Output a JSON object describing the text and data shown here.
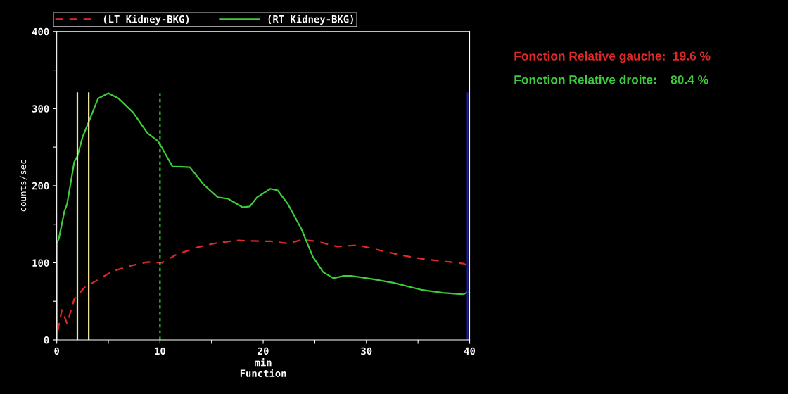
{
  "chart_data": {
    "type": "line",
    "xlabel": "min\nFunction",
    "ylabel": "counts/sec",
    "xlim": [
      0,
      40
    ],
    "xticks": [
      0,
      {
        "value": 5,
        "label": null
      },
      10,
      {
        "value": 15,
        "label": null
      },
      20,
      {
        "value": 25,
        "label": null
      },
      30,
      {
        "value": 35,
        "label": null
      },
      40
    ],
    "ylim": [
      0,
      400
    ],
    "yticks": [
      0,
      {
        "value": 50,
        "label": null
      },
      100,
      {
        "value": 150,
        "label": null
      },
      200,
      {
        "value": 250,
        "label": null
      },
      300,
      {
        "value": 350,
        "label": null
      },
      400
    ],
    "legend": "top left",
    "grid": false,
    "series": [
      {
        "name": "(LT Kidney-BKG)",
        "color": "#e02828",
        "line_style": "dashed",
        "x": [
          0.1,
          0.5,
          1,
          1.7,
          2.7,
          4,
          5.4,
          7.1,
          8.8,
          10.2,
          11.5,
          13.6,
          15.6,
          17.6,
          19.7,
          20.7,
          22.4,
          23.8,
          25.1,
          27.2,
          29.2,
          31.3,
          33.3,
          35.4,
          38.1,
          39.4,
          39.8
        ],
        "values": [
          12,
          39,
          21,
          53,
          68,
          78,
          89,
          96,
          101,
          100,
          110,
          120,
          126,
          129,
          128,
          128,
          125,
          130,
          128,
          121,
          123,
          116,
          110,
          105,
          101,
          99,
          96
        ]
      },
      {
        "name": "(RT Kidney-BKG)",
        "color": "#3ccc3c",
        "line_style": "solid",
        "x": [
          0,
          0,
          0.2,
          0.75,
          1,
          1.7,
          2,
          2.5,
          3.2,
          4,
          5,
          6,
          7.4,
          8.8,
          9.8,
          10.2,
          11.2,
          12.9,
          14.2,
          15.6,
          16.6,
          18,
          18.7,
          19.4,
          20.7,
          21.4,
          22.4,
          23.7,
          24.8,
          25.8,
          26.8,
          27.8,
          28.5,
          30.5,
          32.6,
          35.3,
          37.4,
          39.4,
          39.8
        ],
        "values": [
          0,
          126,
          131,
          167,
          176,
          231,
          238,
          263,
          286,
          313,
          320,
          313,
          295,
          268,
          258,
          249,
          225,
          224,
          202,
          185,
          183,
          172,
          173,
          185,
          196,
          194,
          176,
          144,
          108,
          88,
          80,
          83,
          83,
          79,
          74,
          65,
          61,
          59,
          62
        ]
      }
    ],
    "ref_lines": [
      {
        "axis": "x",
        "value": 2,
        "color": "#f0e6a0",
        "line_style": "solid"
      },
      {
        "axis": "x",
        "value": 3.1,
        "color": "#f0e6a0",
        "line_style": "solid"
      },
      {
        "axis": "x",
        "value": 10,
        "color": "#33cc33",
        "line_style": "dotted"
      },
      {
        "axis": "x",
        "value": 39.8,
        "color": "#1a1aa0",
        "line_style": "solid"
      }
    ],
    "annotations": [
      "Fonction Relative gauche:  19.6 %",
      "Fonction Relative droite:    80.4 %"
    ]
  }
}
